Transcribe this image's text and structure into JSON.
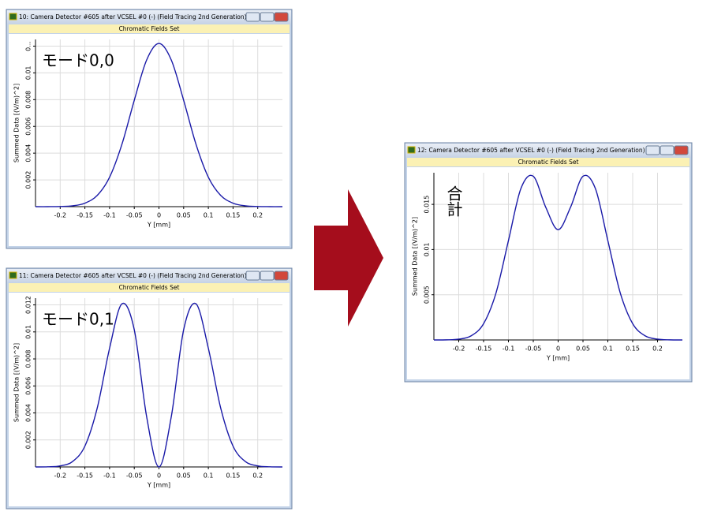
{
  "chart_data": [
    {
      "type": "line",
      "title": "10: Camera Detector #605 after VCSEL #0 (-) (Field Tracing 2nd Generation)",
      "subtitle": "Chromatic Fields Set",
      "annotation": "モード0,0",
      "xlabel": "Y [mm]",
      "ylabel": "Summed Data [(V/m)^2]",
      "x": [
        -0.25,
        -0.225,
        -0.2,
        -0.175,
        -0.15,
        -0.125,
        -0.1,
        -0.075,
        -0.05,
        -0.025,
        0,
        0.025,
        0.05,
        0.075,
        0.1,
        0.125,
        0.15,
        0.175,
        0.2,
        0.225,
        0.25
      ],
      "series": [
        {
          "color": "#1a1aa8",
          "values": [
            0,
            0,
            1e-05,
            6e-05,
            0.00026,
            0.00084,
            0.0022,
            0.00466,
            0.00795,
            0.01096,
            0.0122,
            0.01096,
            0.00795,
            0.00466,
            0.0022,
            0.00084,
            0.00026,
            6e-05,
            1e-05,
            0,
            0
          ]
        }
      ],
      "xlim": [
        -0.25,
        0.25
      ],
      "ylim": [
        0,
        0.0125
      ],
      "xticks": [
        -0.2,
        -0.15,
        -0.1,
        -0.05,
        0,
        0.05,
        0.1,
        0.15,
        0.2
      ],
      "yticks": [
        0.002,
        0.004,
        0.006,
        0.008,
        0.01,
        {
          "value": 0.012,
          "label": "0..."
        }
      ],
      "grid": true
    },
    {
      "type": "line",
      "title": "11: Camera Detector #605 after VCSEL #0 (-) (Field Tracing 2nd Generation)",
      "subtitle": "Chromatic Fields Set",
      "annotation": "モード0,1",
      "xlabel": "Y [mm]",
      "ylabel": "Summed Data [(V/m)^2]",
      "x": [
        -0.25,
        -0.225,
        -0.2,
        -0.175,
        -0.15,
        -0.125,
        -0.1,
        -0.075,
        -0.05,
        -0.025,
        0,
        0.025,
        0.05,
        0.075,
        0.1,
        0.125,
        0.15,
        0.175,
        0.2,
        0.225,
        0.25
      ],
      "series": [
        {
          "color": "#1a1aa8",
          "values": [
            0,
            1e-05,
            8e-05,
            0.0004,
            0.00154,
            0.00436,
            0.00879,
            0.01208,
            0.01016,
            0.00373,
            0,
            0.00373,
            0.01016,
            0.01208,
            0.00879,
            0.00436,
            0.00154,
            0.0004,
            8e-05,
            1e-05,
            0
          ]
        }
      ],
      "xlim": [
        -0.25,
        0.25
      ],
      "ylim": [
        0,
        0.0125
      ],
      "xticks": [
        -0.2,
        -0.15,
        -0.1,
        -0.05,
        0,
        0.05,
        0.1,
        0.15,
        0.2
      ],
      "yticks": [
        0.002,
        0.004,
        0.006,
        0.008,
        0.01,
        0.012
      ],
      "grid": true
    },
    {
      "type": "line",
      "title": "12: Camera Detector #605 after VCSEL #0 (-) (Field Tracing 2nd Generation)",
      "subtitle": "Chromatic Fields Set",
      "annotation": "合計",
      "xlabel": "Y [mm]",
      "ylabel": "Summed Data [(V/m)^2]",
      "x": [
        -0.25,
        -0.225,
        -0.2,
        -0.175,
        -0.15,
        -0.125,
        -0.1,
        -0.075,
        -0.05,
        -0.025,
        0,
        0.025,
        0.05,
        0.075,
        0.1,
        0.125,
        0.15,
        0.175,
        0.2,
        0.225,
        0.25
      ],
      "series": [
        {
          "color": "#1a1aa8",
          "values": [
            0,
            1e-05,
            9e-05,
            0.00046,
            0.0018,
            0.0052,
            0.01099,
            0.01674,
            0.01811,
            0.01469,
            0.0122,
            0.01469,
            0.01811,
            0.01674,
            0.01099,
            0.0052,
            0.0018,
            0.00046,
            9e-05,
            1e-05,
            0
          ]
        }
      ],
      "xlim": [
        -0.25,
        0.25
      ],
      "ylim": [
        0,
        0.0185
      ],
      "xticks": [
        -0.2,
        -0.15,
        -0.1,
        -0.05,
        0,
        0.05,
        0.1,
        0.15,
        0.2
      ],
      "yticks": [
        0.005,
        0.01,
        0.015
      ],
      "grid": true
    }
  ]
}
